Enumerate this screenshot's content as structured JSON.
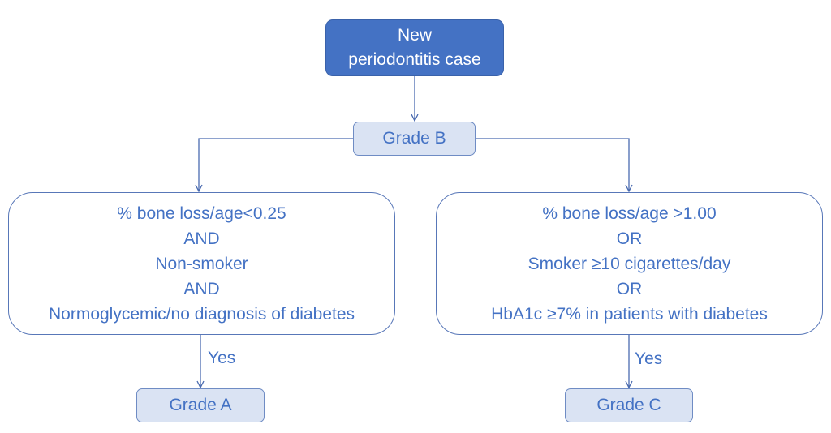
{
  "nodes": {
    "start": {
      "line1": "New",
      "line2": "periodontitis case"
    },
    "grade_b": "Grade B",
    "left_criteria": {
      "lines": [
        "% bone loss/age<0.25",
        "AND",
        "Non-smoker",
        "AND",
        "Normoglycemic/no diagnosis of diabetes"
      ]
    },
    "right_criteria": {
      "lines": [
        "% bone loss/age >1.00",
        "OR",
        "Smoker ≥10 cigarettes/day",
        "OR",
        "HbA1c ≥7% in patients with diabetes"
      ]
    },
    "grade_a": "Grade A",
    "grade_c": "Grade C"
  },
  "edges": {
    "left_yes": "Yes",
    "right_yes": "Yes"
  },
  "colors": {
    "primary": "#4472c4",
    "box_fill": "#dae3f3",
    "line": "#4a6bb0"
  }
}
